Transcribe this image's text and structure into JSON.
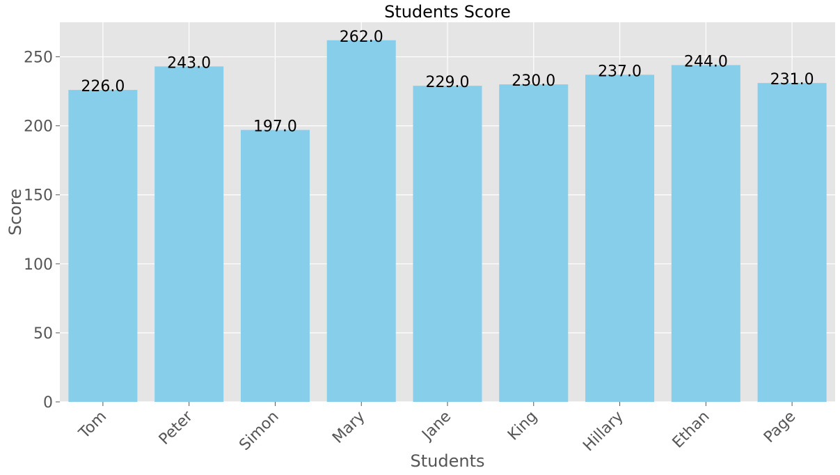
{
  "chart_data": {
    "type": "bar",
    "title": "Students Score",
    "xlabel": "Students",
    "ylabel": "Score",
    "categories": [
      "Tom",
      "Peter",
      "Simon",
      "Mary",
      "Jane",
      "King",
      "Hillary",
      "Ethan",
      "Page"
    ],
    "values": [
      226.0,
      243.0,
      197.0,
      262.0,
      229.0,
      230.0,
      237.0,
      244.0,
      231.0
    ],
    "value_labels": [
      "226.0",
      "243.0",
      "197.0",
      "262.0",
      "229.0",
      "230.0",
      "237.0",
      "244.0",
      "231.0"
    ],
    "ylim": [
      0,
      275
    ],
    "yticks": [
      0,
      50,
      100,
      150,
      200,
      250
    ],
    "grid": true,
    "colors": {
      "bar": "#87CEEB",
      "plot_background": "#E5E5E5",
      "grid": "#FFFFFF"
    }
  }
}
